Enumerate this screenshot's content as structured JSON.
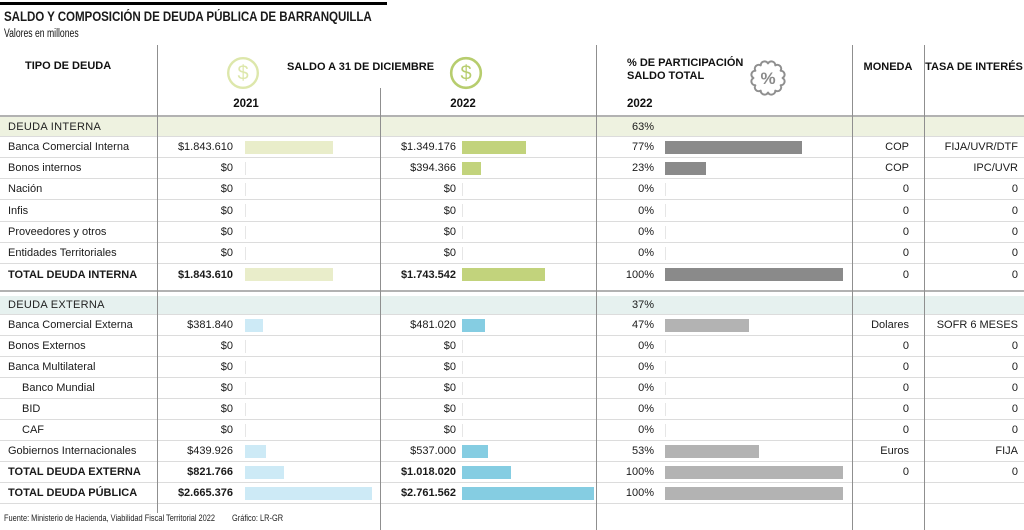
{
  "title": "SALDO Y COMPOSICIÓN DE DEUDA PÚBLICA DE BARRANQUILLA",
  "subtitle": "Valores en millones",
  "header": {
    "tipo": "TIPO DE DEUDA",
    "saldo": "SALDO A 31 DE DICIEMBRE",
    "year_2021": "2021",
    "year_2022": "2022",
    "participacion_line1": "% DE PARTICIPACIÓN",
    "participacion_line2": "SALDO TOTAL",
    "participacion_year": "2022",
    "moneda": "MONEDA",
    "tasa": "TASA DE INTERÉS"
  },
  "footer": {
    "fuente": "Fuente: Ministerio de Hacienda, Viabilidad Fiscal Territorial 2022",
    "grafico": "Gráfico: LR-GR"
  },
  "colors": {
    "band_interna": "#eef2e0",
    "band_externa": "#e6f1ef",
    "bar2021_interna": "#e9edca",
    "bar2022_interna": "#c2d37c",
    "bar2021_externa": "#cdeaf6",
    "bar2022_externa": "#85cde2",
    "pct_interna": "#8a8a8a",
    "pct_externa": "#b3b3b3",
    "coin_2021": "#dde7ab",
    "coin_2022": "#b7cd6e",
    "badge_gray": "#8f8f8f",
    "zero_tick": "#e6e6e6"
  },
  "chart_data": {
    "type": "table",
    "title": "SALDO Y COMPOSICIÓN DE DEUDA PÚBLICA DE BARRANQUILLA",
    "unit": "millones",
    "columns": [
      "TIPO DE DEUDA",
      "SALDO A 31 DE DICIEMBRE 2021",
      "SALDO A 31 DE DICIEMBRE 2022",
      "% DE PARTICIPACIÓN SALDO TOTAL 2022",
      "MONEDA",
      "TASA DE INTERÉS"
    ],
    "rows": [
      {
        "label": "DEUDA INTERNA",
        "kind": "section",
        "section": "interna",
        "pct": 63,
        "pct_display": "63%"
      },
      {
        "label": "Banca Comercial Interna",
        "section": "interna",
        "v2021": 1843610,
        "d2021": "$1.843.610",
        "v2022": 1349176,
        "d2022": "$1.349.176",
        "pct": 77,
        "pct_display": "77%",
        "moneda": "COP",
        "tasa": "FIJA/UVR/DTF"
      },
      {
        "label": "Bonos internos",
        "section": "interna",
        "v2021": 0,
        "d2021": "$0",
        "v2022": 394366,
        "d2022": "$394.366",
        "pct": 23,
        "pct_display": "23%",
        "moneda": "COP",
        "tasa": "IPC/UVR"
      },
      {
        "label": "Nación",
        "section": "interna",
        "v2021": 0,
        "d2021": "$0",
        "v2022": 0,
        "d2022": "$0",
        "pct": 0,
        "pct_display": "0%",
        "moneda": "0",
        "tasa": "0"
      },
      {
        "label": "Infis",
        "section": "interna",
        "v2021": 0,
        "d2021": "$0",
        "v2022": 0,
        "d2022": "$0",
        "pct": 0,
        "pct_display": "0%",
        "moneda": "0",
        "tasa": "0"
      },
      {
        "label": "Proveedores y otros",
        "section": "interna",
        "v2021": 0,
        "d2021": "$0",
        "v2022": 0,
        "d2022": "$0",
        "pct": 0,
        "pct_display": "0%",
        "moneda": "0",
        "tasa": "0"
      },
      {
        "label": "Entidades Territoriales",
        "section": "interna",
        "v2021": 0,
        "d2021": "$0",
        "v2022": 0,
        "d2022": "$0",
        "pct": 0,
        "pct_display": "0%",
        "moneda": "0",
        "tasa": "0"
      },
      {
        "label": "TOTAL DEUDA INTERNA",
        "kind": "total",
        "section": "interna",
        "v2021": 1843610,
        "d2021": "$1.843.610",
        "v2022": 1743542,
        "d2022": "$1.743.542",
        "pct": 100,
        "pct_display": "100%",
        "moneda": "0",
        "tasa": "0"
      },
      {
        "label": "DEUDA EXTERNA",
        "kind": "section",
        "section": "externa",
        "pct": 37,
        "pct_display": "37%"
      },
      {
        "label": "Banca Comercial Externa",
        "section": "externa",
        "v2021": 381840,
        "d2021": "$381.840",
        "v2022": 481020,
        "d2022": "$481.020",
        "pct": 47,
        "pct_display": "47%",
        "moneda": "Dolares",
        "tasa": "SOFR 6 MESES"
      },
      {
        "label": "Bonos Externos",
        "section": "externa",
        "v2021": 0,
        "d2021": "$0",
        "v2022": 0,
        "d2022": "$0",
        "pct": 0,
        "pct_display": "0%",
        "moneda": "0",
        "tasa": "0"
      },
      {
        "label": "Banca Multilateral",
        "section": "externa",
        "v2021": 0,
        "d2021": "$0",
        "v2022": 0,
        "d2022": "$0",
        "pct": 0,
        "pct_display": "0%",
        "moneda": "0",
        "tasa": "0"
      },
      {
        "label": "Banco Mundial",
        "section": "externa",
        "indent": true,
        "v2021": 0,
        "d2021": "$0",
        "v2022": 0,
        "d2022": "$0",
        "pct": 0,
        "pct_display": "0%",
        "moneda": "0",
        "tasa": "0"
      },
      {
        "label": "BID",
        "section": "externa",
        "indent": true,
        "v2021": 0,
        "d2021": "$0",
        "v2022": 0,
        "d2022": "$0",
        "pct": 0,
        "pct_display": "0%",
        "moneda": "0",
        "tasa": "0"
      },
      {
        "label": "CAF",
        "section": "externa",
        "indent": true,
        "v2021": 0,
        "d2021": "$0",
        "v2022": 0,
        "d2022": "$0",
        "pct": 0,
        "pct_display": "0%",
        "moneda": "0",
        "tasa": "0"
      },
      {
        "label": "Gobiernos Internacionales",
        "section": "externa",
        "v2021": 439926,
        "d2021": "$439.926",
        "v2022": 537000,
        "d2022": "$537.000",
        "pct": 53,
        "pct_display": "53%",
        "moneda": "Euros",
        "tasa": "FIJA"
      },
      {
        "label": "TOTAL DEUDA EXTERNA",
        "kind": "total",
        "section": "externa",
        "v2021": 821766,
        "d2021": "$821.766",
        "v2022": 1018020,
        "d2022": "$1.018.020",
        "pct": 100,
        "pct_display": "100%",
        "moneda": "0",
        "tasa": "0"
      },
      {
        "label": "TOTAL DEUDA PÚBLICA",
        "kind": "total",
        "section": "externa",
        "v2021": 2665376,
        "d2021": "$2.665.376",
        "v2022": 2761562,
        "d2022": "$2.761.562",
        "pct": 100,
        "pct_display": "100%",
        "moneda": "",
        "tasa": ""
      }
    ]
  }
}
